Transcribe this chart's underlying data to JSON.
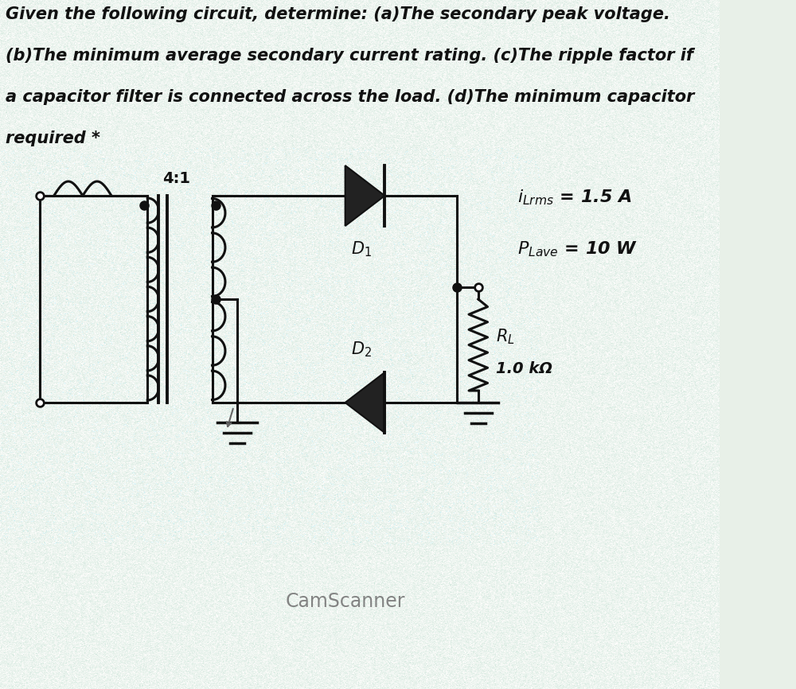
{
  "title_line1": "Given the following circuit, determine: (a)The secondary peak voltage.",
  "title_line2": "(b)The minimum average secondary current rating. (c)The ripple factor if",
  "title_line3": "a capacitor filter is connected across the load. (d)The minimum capacitor",
  "title_line4": "required *",
  "title_fontsize": 15.0,
  "title_color": "#111111",
  "bg_color_top": "#f0f0f0",
  "bg_color_circuit": "#cde0d8",
  "transformer_ratio": "4:1",
  "d1_label": "$D_1$",
  "d2_label": "$D_2$",
  "rl_label1": "$R_L$",
  "rl_label2": "1.0 kΩ",
  "camscanner_text": "CamScanner",
  "camscanner_color": "#777777",
  "line_color": "#111111",
  "text_color": "#111111",
  "noise_alpha": 0.18
}
